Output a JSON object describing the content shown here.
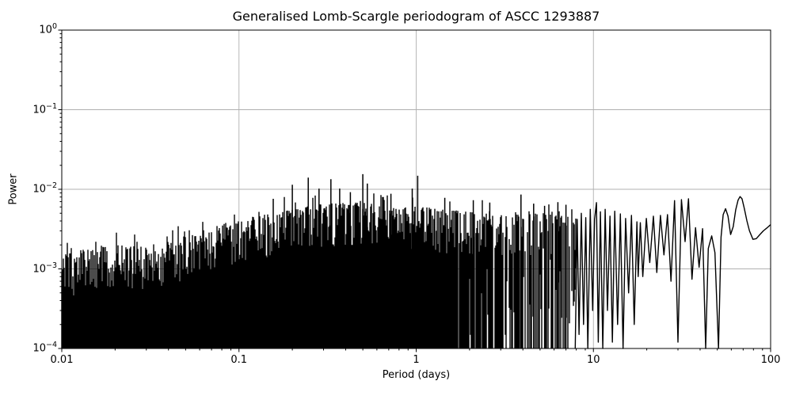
{
  "figure": {
    "background": "#ffffff",
    "title": "Generalised Lomb-Scargle periodogram of ASCC 1293887",
    "xlabel": "Period (days)",
    "ylabel": "Power"
  },
  "chart_data": {
    "type": "line",
    "title": "Generalised Lomb-Scargle periodogram of ASCC 1293887",
    "xlabel": "Period (days)",
    "ylabel": "Power",
    "xscale": "log",
    "yscale": "log",
    "xlim": [
      0.01,
      100
    ],
    "ylim": [
      0.0001,
      1.0
    ],
    "x_ticks": [
      {
        "value": 0.01,
        "label": "0.01"
      },
      {
        "value": 0.1,
        "label": "0.1"
      },
      {
        "value": 1,
        "label": "1"
      },
      {
        "value": 10,
        "label": "10"
      },
      {
        "value": 100,
        "label": "100"
      }
    ],
    "y_ticks": [
      {
        "value": 1,
        "base": "10",
        "exp": "0"
      },
      {
        "value": 0.1,
        "base": "10",
        "exp": "−1"
      },
      {
        "value": 0.01,
        "base": "10",
        "exp": "−2"
      },
      {
        "value": 0.001,
        "base": "10",
        "exp": "−3"
      },
      {
        "value": 0.0001,
        "base": "10",
        "exp": "−4"
      }
    ],
    "grid": {
      "show": true,
      "which": "major",
      "color": "#b0b0b0"
    },
    "line_color": "#000000",
    "spine_color": "#000000",
    "dense_noise_region": {
      "period_range": [
        0.01,
        8.0
      ],
      "noise_floor": 0.0001,
      "seed": 42,
      "envelope_points": [
        [
          0.01,
          0.0015
        ],
        [
          0.014,
          0.0018
        ],
        [
          0.02,
          0.002
        ],
        [
          0.028,
          0.0019
        ],
        [
          0.04,
          0.0022
        ],
        [
          0.055,
          0.0028
        ],
        [
          0.07,
          0.0033
        ],
        [
          0.085,
          0.0038
        ],
        [
          0.1,
          0.0042
        ],
        [
          0.13,
          0.0047
        ],
        [
          0.16,
          0.005
        ],
        [
          0.2,
          0.0056
        ],
        [
          0.25,
          0.0062
        ],
        [
          0.3,
          0.0066
        ],
        [
          0.4,
          0.0068
        ],
        [
          0.5,
          0.0068
        ],
        [
          0.65,
          0.006
        ],
        [
          0.8,
          0.0057
        ],
        [
          1.0,
          0.0063
        ],
        [
          1.3,
          0.0057
        ],
        [
          1.7,
          0.0054
        ],
        [
          2.2,
          0.0051
        ],
        [
          3.0,
          0.0047
        ],
        [
          4.0,
          0.0056
        ],
        [
          5.0,
          0.0049
        ],
        [
          6.3,
          0.0056
        ],
        [
          8.0,
          0.0045
        ]
      ],
      "notable_peaks": [
        [
          0.156,
          0.0076
        ],
        [
          0.2,
          0.0114
        ],
        [
          0.246,
          0.014
        ],
        [
          0.283,
          0.0102
        ],
        [
          0.33,
          0.0134
        ],
        [
          0.37,
          0.0102
        ],
        [
          0.425,
          0.0092
        ],
        [
          0.5,
          0.0155
        ],
        [
          0.53,
          0.0118
        ],
        [
          0.72,
          0.0088
        ],
        [
          0.95,
          0.0102
        ],
        [
          1.02,
          0.0148
        ],
        [
          1.45,
          0.0078
        ],
        [
          2.1,
          0.0073
        ],
        [
          2.6,
          0.0068
        ],
        [
          3.9,
          0.0086
        ],
        [
          4.6,
          0.0066
        ],
        [
          5.3,
          0.0062
        ],
        [
          6.3,
          0.0069
        ],
        [
          7.0,
          0.0064
        ]
      ]
    },
    "resolved_tail": [
      [
        7.9,
        0.0001
      ],
      [
        8.1,
        0.0042
      ],
      [
        8.3,
        0.00015
      ],
      [
        8.55,
        0.005
      ],
      [
        8.8,
        0.0002
      ],
      [
        9.05,
        0.0044
      ],
      [
        9.3,
        0.0001
      ],
      [
        9.6,
        0.0056
      ],
      [
        9.9,
        0.0003
      ],
      [
        10.15,
        0.0042
      ],
      [
        10.4,
        0.0068
      ],
      [
        10.65,
        0.00012
      ],
      [
        10.95,
        0.0052
      ],
      [
        11.3,
        0.0001
      ],
      [
        11.65,
        0.0056
      ],
      [
        12.0,
        0.0003
      ],
      [
        12.4,
        0.0046
      ],
      [
        12.8,
        0.00012
      ],
      [
        13.2,
        0.0053
      ],
      [
        13.7,
        0.0002
      ],
      [
        14.2,
        0.0049
      ],
      [
        14.7,
        0.0001
      ],
      [
        15.2,
        0.0043
      ],
      [
        15.8,
        0.0005
      ],
      [
        16.4,
        0.0047
      ],
      [
        17.0,
        0.0002
      ],
      [
        17.6,
        0.0039
      ],
      [
        17.9,
        0.0008
      ],
      [
        18.4,
        0.0038
      ],
      [
        19.0,
        0.0008
      ],
      [
        19.9,
        0.0043
      ],
      [
        20.8,
        0.0012
      ],
      [
        21.8,
        0.0046
      ],
      [
        22.8,
        0.0009
      ],
      [
        23.9,
        0.0047
      ],
      [
        25.0,
        0.0015
      ],
      [
        26.2,
        0.0048
      ],
      [
        27.4,
        0.0007
      ],
      [
        28.7,
        0.0072
      ],
      [
        30.0,
        0.00012
      ],
      [
        31.4,
        0.0074
      ],
      [
        32.9,
        0.0022
      ],
      [
        34.4,
        0.0076
      ],
      [
        36.0,
        0.00074
      ],
      [
        37.7,
        0.0033
      ],
      [
        39.5,
        0.00105
      ],
      [
        41.3,
        0.0032
      ],
      [
        43.0,
        0.0001
      ],
      [
        44.5,
        0.0018
      ],
      [
        46.5,
        0.0026
      ],
      [
        48.5,
        0.0016
      ],
      [
        50.8,
        0.0001
      ],
      [
        52.5,
        0.0025
      ],
      [
        54.0,
        0.0048
      ],
      [
        55.7,
        0.0057
      ],
      [
        57.5,
        0.0046
      ],
      [
        59.5,
        0.0027
      ],
      [
        61.5,
        0.0034
      ],
      [
        63.5,
        0.0055
      ],
      [
        65.5,
        0.0073
      ],
      [
        67.2,
        0.0081
      ],
      [
        69.0,
        0.0076
      ],
      [
        71.0,
        0.0058
      ],
      [
        73.5,
        0.004
      ],
      [
        76.0,
        0.003
      ],
      [
        79.5,
        0.00235
      ],
      [
        83.0,
        0.0024
      ],
      [
        87.0,
        0.0027
      ],
      [
        91.0,
        0.003
      ],
      [
        95.0,
        0.00325
      ],
      [
        100.0,
        0.0036
      ]
    ]
  }
}
